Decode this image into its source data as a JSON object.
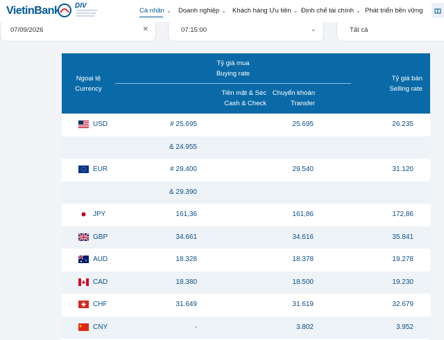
{
  "brand": {
    "name": "VietinBank",
    "badge": "DIV"
  },
  "nav": {
    "items": [
      {
        "label": "Cá nhân",
        "active": true
      },
      {
        "label": "Doanh nghiệp"
      },
      {
        "label": "Khách hàng Ưu tiên"
      },
      {
        "label": "Định chế tài chính"
      },
      {
        "label": "Phát triển bền vững"
      }
    ]
  },
  "filters": {
    "date": "07/09/2026",
    "time": "07:15:00",
    "branch": "Tất cả"
  },
  "table": {
    "headers": {
      "currency_vi": "Ngoại tệ",
      "currency_en": "Currency",
      "buying_vi": "Tỷ giá mua",
      "buying_en": "Buying rate",
      "cash_vi": "Tiền mặt & Séc",
      "cash_en": "Cash & Check",
      "transfer_vi": "Chuyển khoản",
      "transfer_en": "Transfer",
      "selling_vi": "Tỷ giá bán",
      "selling_en": "Selling rate"
    },
    "rows": [
      {
        "code": "USD",
        "flag": "us-flag-icon",
        "cash": "# 25.695",
        "transfer": "25.695",
        "selling": "26.235"
      },
      {
        "code": "",
        "flag": "",
        "cash": "& 24.955",
        "transfer": "",
        "selling": ""
      },
      {
        "code": "EUR",
        "flag": "eu-flag-icon",
        "cash": "# 29.400",
        "transfer": "29.540",
        "selling": "31.120"
      },
      {
        "code": "",
        "flag": "",
        "cash": "& 29.390",
        "transfer": "",
        "selling": ""
      },
      {
        "code": "JPY",
        "flag": "jp-flag-icon",
        "cash": "161,36",
        "transfer": "161,86",
        "selling": "172,86"
      },
      {
        "code": "GBP",
        "flag": "gb-flag-icon",
        "cash": "34.661",
        "transfer": "34.616",
        "selling": "35.841"
      },
      {
        "code": "AUD",
        "flag": "au-flag-icon",
        "cash": "18.328",
        "transfer": "18.378",
        "selling": "19.278"
      },
      {
        "code": "CAD",
        "flag": "ca-flag-icon",
        "cash": "18.380",
        "transfer": "18.500",
        "selling": "19.230"
      },
      {
        "code": "CHF",
        "flag": "ch-flag-icon",
        "cash": "31.649",
        "transfer": "31.619",
        "selling": "32.679"
      },
      {
        "code": "CNY",
        "flag": "cn-flag-icon",
        "cash": "-",
        "transfer": "3.802",
        "selling": "3.952"
      }
    ]
  },
  "colors": {
    "primary": "#005993",
    "header_bg": "#0a6aa7",
    "row_alt": "#eef3f8",
    "text": "#0b4f86"
  }
}
